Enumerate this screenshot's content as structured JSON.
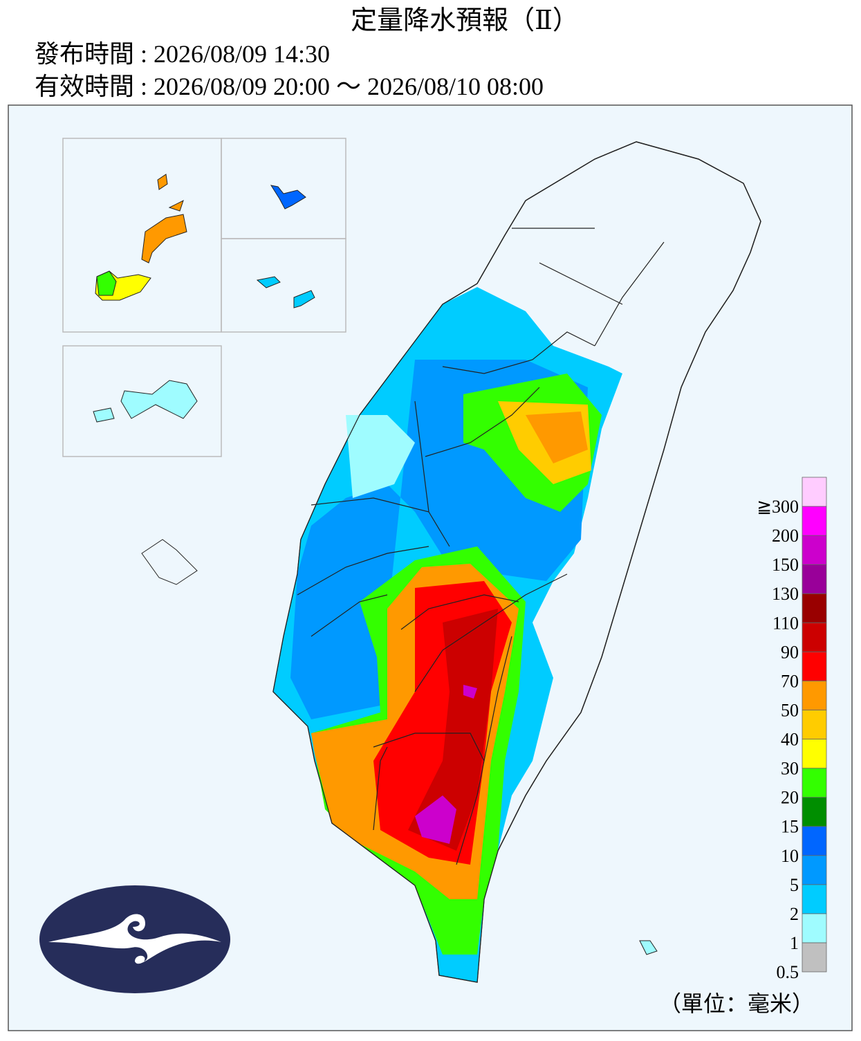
{
  "header": {
    "title": "定量降水預報（Ⅱ）",
    "issued": "發布時間 : 2026/08/09 14:30",
    "valid": "有效時間 : 2026/08/09 20:00 ～ 2026/08/10 08:00"
  },
  "legend": {
    "labels": [
      "0.5",
      "1",
      "2",
      "5",
      "10",
      "15",
      "20",
      "30",
      "40",
      "50",
      "70",
      "90",
      "110",
      "130",
      "150",
      "200",
      "≧300"
    ],
    "colors": [
      "#c0c0c0",
      "#9ffcff",
      "#00ccff",
      "#0099ff",
      "#0066ff",
      "#008e00",
      "#33ff00",
      "#ffff00",
      "#ffcc00",
      "#ff9900",
      "#ff0000",
      "#cc0000",
      "#990000",
      "#990099",
      "#cc00cc",
      "#ff00ff",
      "#ffccff"
    ]
  },
  "unit": "（單位：毫米）"
}
